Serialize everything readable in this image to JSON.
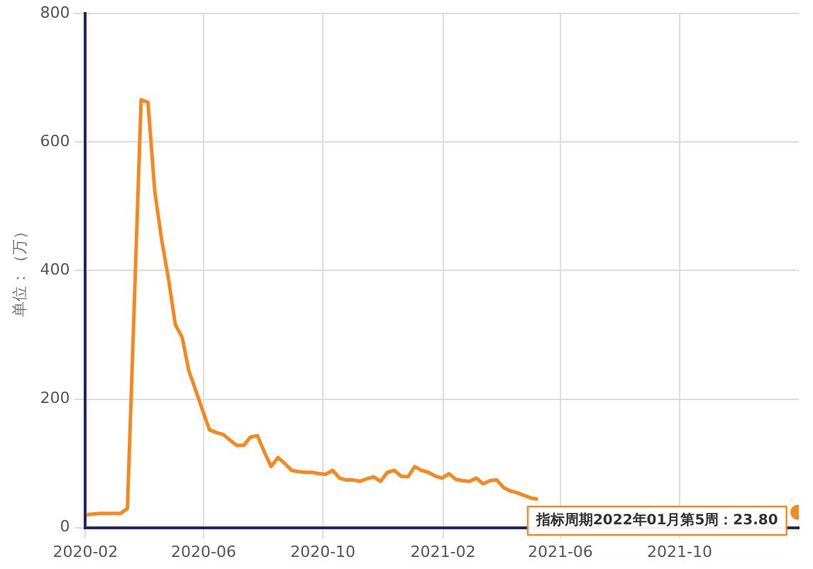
{
  "chart_data": {
    "type": "line",
    "ylabel": "单位：（万）",
    "x": [
      "2020-02-02",
      "2020-02-09",
      "2020-02-16",
      "2020-02-23",
      "2020-03-01",
      "2020-03-08",
      "2020-03-15",
      "2020-03-29",
      "2020-04-05",
      "2020-04-12",
      "2020-04-19",
      "2020-04-26",
      "2020-05-03",
      "2020-05-10",
      "2020-05-17",
      "2020-05-24",
      "2020-05-31",
      "2020-06-07",
      "2020-06-14",
      "2020-06-21",
      "2020-06-28",
      "2020-07-05",
      "2020-07-12",
      "2020-07-19",
      "2020-07-26",
      "2020-08-02",
      "2020-08-09",
      "2020-08-16",
      "2020-08-23",
      "2020-08-30",
      "2020-09-06",
      "2020-09-13",
      "2020-09-20",
      "2020-09-27",
      "2020-10-04",
      "2020-10-11",
      "2020-10-18",
      "2020-10-25",
      "2020-11-01",
      "2020-11-08",
      "2020-11-15",
      "2020-11-22",
      "2020-11-29",
      "2020-12-06",
      "2020-12-13",
      "2020-12-20",
      "2020-12-27",
      "2021-01-03",
      "2021-01-10",
      "2021-01-17",
      "2021-01-24",
      "2021-01-31",
      "2021-02-07",
      "2021-02-14",
      "2021-02-21",
      "2021-02-28",
      "2021-03-07",
      "2021-03-14",
      "2021-03-21",
      "2021-03-28",
      "2021-04-04",
      "2021-04-11",
      "2021-04-18",
      "2021-04-25",
      "2021-05-02",
      "2021-05-09",
      "2021-05-16",
      "2022-01-30"
    ],
    "series": [
      {
        "color": "#f5891f",
        "values": [
          20,
          21,
          22,
          22,
          22,
          22,
          30,
          666,
          662,
          523,
          448,
          387,
          316,
          296,
          243,
          213,
          182,
          152,
          148,
          145,
          136,
          128,
          128,
          141,
          143,
          118,
          95,
          109,
          100,
          89,
          87,
          86,
          86,
          84,
          83,
          89,
          77,
          74,
          74,
          72,
          76,
          79,
          72,
          86,
          89,
          80,
          79,
          95,
          89,
          86,
          80,
          77,
          84,
          75,
          73,
          72,
          77,
          68,
          73,
          74,
          62,
          57,
          54,
          50,
          46,
          44,
          null,
          23.8
        ]
      }
    ],
    "xlim": [
      "2020-02-01",
      "2022-01-31"
    ],
    "xticks": [
      "2020-02",
      "2020-06",
      "2020-10",
      "2021-02",
      "2021-06",
      "2021-10"
    ],
    "ylim": [
      0,
      800
    ],
    "yticks": [
      0,
      200,
      400,
      600,
      800
    ],
    "grid": true,
    "legend": false,
    "marker": "none",
    "line_style": "solid",
    "annotations": [
      {
        "text": "指标周期2022年01月第5周：23.80",
        "x": "2022-01-30",
        "y": 23.8
      }
    ]
  }
}
